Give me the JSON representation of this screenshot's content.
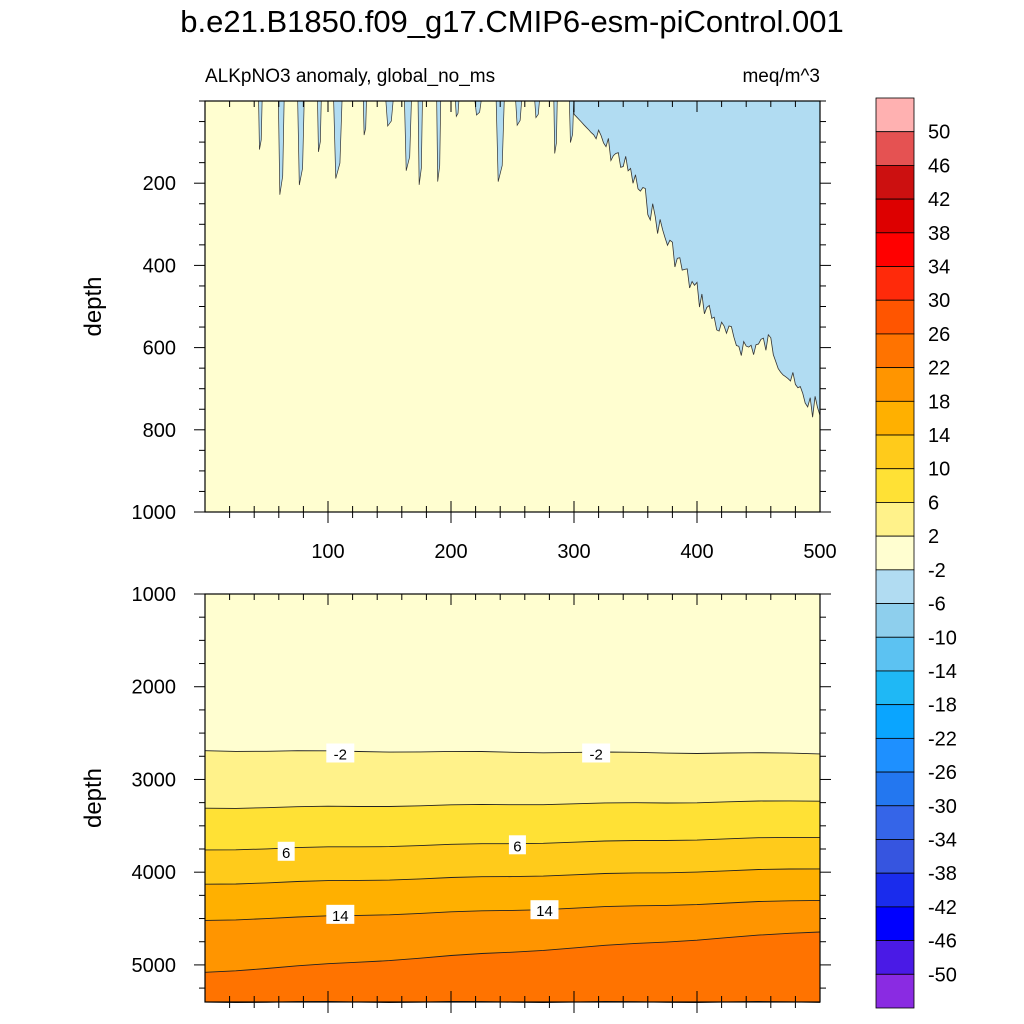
{
  "title": "b.e21.B1850.f09_g17.CMIP6-esm-piControl.001",
  "chart_data": {
    "type": "contour",
    "left_label": "ALKpNO3 anomaly, global_no_ms",
    "right_label": "meq/m^3",
    "xlim": [
      0,
      500
    ],
    "x_ticks": [
      "100",
      "200",
      "300",
      "400",
      "500"
    ],
    "panels": [
      {
        "name": "upper",
        "ylabel": "depth",
        "ylim": [
          1000,
          0
        ],
        "y_ticks": [
          "200",
          "400",
          "600",
          "800",
          "1000"
        ],
        "background_level": "-6 to -2",
        "regions": [
          {
            "level": "-10 to -6",
            "description": "shallow patches and a wedge deepening eastward",
            "boundary_x": [
              0,
              40,
              160,
              290,
              315,
              340,
              360,
              390,
              420,
              440,
              460,
              480,
              500
            ],
            "boundary_depth": [
              0,
              0,
              0,
              0,
              80,
              150,
              250,
              420,
              560,
              600,
              590,
              700,
              760
            ]
          }
        ]
      },
      {
        "name": "lower",
        "ylabel": "depth",
        "ylim": [
          1000,
          5400
        ],
        "y_ticks": [
          "1000",
          "2000",
          "3000",
          "4000",
          "5000"
        ],
        "contours": [
          {
            "level": -2,
            "label": "-2",
            "x": [
              0,
              500
            ],
            "depth": [
              2690,
              2720
            ]
          },
          {
            "level": 2,
            "x": [
              0,
              500
            ],
            "depth": [
              3310,
              3230
            ]
          },
          {
            "level": 6,
            "label": "6",
            "x": [
              0,
              500
            ],
            "depth": [
              3760,
              3620
            ]
          },
          {
            "level": 10,
            "x": [
              0,
              500
            ],
            "depth": [
              4130,
              3960
            ]
          },
          {
            "level": 14,
            "label": "14",
            "x": [
              0,
              500
            ],
            "depth": [
              4520,
              4300
            ]
          },
          {
            "level": 18,
            "x": [
              0,
              500
            ],
            "depth": [
              5080,
              4640
            ]
          },
          {
            "level": 22,
            "x": [
              0,
              500
            ],
            "depth": [
              5400,
              5400
            ]
          }
        ],
        "contour_labels": [
          {
            "text": "-2",
            "x": 110,
            "depth": 2720
          },
          {
            "text": "-2",
            "x": 318,
            "depth": 2720
          },
          {
            "text": "6",
            "x": 66,
            "depth": 3780
          },
          {
            "text": "6",
            "x": 254,
            "depth": 3710
          },
          {
            "text": "14",
            "x": 110,
            "depth": 4460
          },
          {
            "text": "14",
            "x": 276,
            "depth": 4410
          }
        ]
      }
    ],
    "colorbar": {
      "levels": [
        "50",
        "46",
        "42",
        "38",
        "34",
        "30",
        "26",
        "22",
        "18",
        "14",
        "10",
        "6",
        "2",
        "-2",
        "-6",
        "-10",
        "-14",
        "-18",
        "-22",
        "-26",
        "-30",
        "-34",
        "-38",
        "-42",
        "-46",
        "-50"
      ],
      "colors": [
        "#ffb1b1",
        "#e55252",
        "#cc1010",
        "#dd0000",
        "#ff0000",
        "#ff2a0a",
        "#ff5500",
        "#ff7300",
        "#ff9500",
        "#ffb000",
        "#ffcb1b",
        "#ffe135",
        "#fff28a",
        "#fffed0",
        "#b1dcf2",
        "#8ecfed",
        "#5cc2f2",
        "#1fb8f5",
        "#0aa5ff",
        "#1e90ff",
        "#2377f0",
        "#3565e8",
        "#3655e0",
        "#1a2ced",
        "#0000ff",
        "#4a1ae6",
        "#8a2be2"
      ]
    }
  }
}
